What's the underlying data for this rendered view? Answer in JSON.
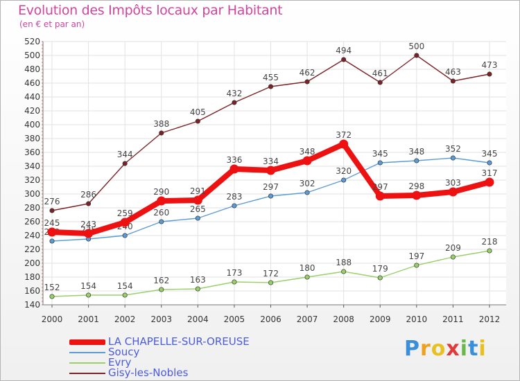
{
  "title": "Evolution des Impôts locaux par Habitant",
  "subtitle": "(en € et par an)",
  "logo_text": "Proxiti",
  "chart_data": {
    "type": "line",
    "title": "Evolution des Impôts locaux par Habitant",
    "subtitle": "(en € et par an)",
    "x": [
      "2000",
      "2001",
      "2002",
      "2003",
      "2004",
      "2005",
      "2006",
      "2007",
      "2008",
      "2009",
      "2010",
      "2011",
      "2012"
    ],
    "ylim": [
      140,
      520
    ],
    "yticks": [
      140,
      160,
      180,
      200,
      220,
      240,
      260,
      280,
      300,
      320,
      340,
      360,
      380,
      400,
      420,
      440,
      460,
      480,
      500,
      520
    ],
    "grid": true,
    "legend": "bottom-left",
    "series": [
      {
        "name": "Gisy-les-Nobles",
        "color": "#7b2226",
        "values": [
          276,
          286,
          344,
          388,
          405,
          432,
          455,
          462,
          494,
          461,
          500,
          463,
          473
        ]
      },
      {
        "name": "Evry",
        "color": "#98d068",
        "values": [
          152,
          154,
          154,
          162,
          163,
          173,
          172,
          180,
          188,
          179,
          197,
          209,
          218
        ]
      },
      {
        "name": "Soucy",
        "color": "#5b9bd5",
        "values": [
          232,
          235,
          240,
          260,
          265,
          283,
          297,
          302,
          320,
          345,
          348,
          352,
          345
        ]
      },
      {
        "name": "LA CHAPELLE-SUR-OREUSE",
        "color": "#ee1111",
        "values": [
          245,
          243,
          259,
          290,
          291,
          336,
          334,
          348,
          372,
          297,
          298,
          303,
          317
        ]
      }
    ],
    "legend_order": [
      "LA CHAPELLE-SUR-OREUSE",
      "Soucy",
      "Evry",
      "Gisy-les-Nobles"
    ]
  }
}
